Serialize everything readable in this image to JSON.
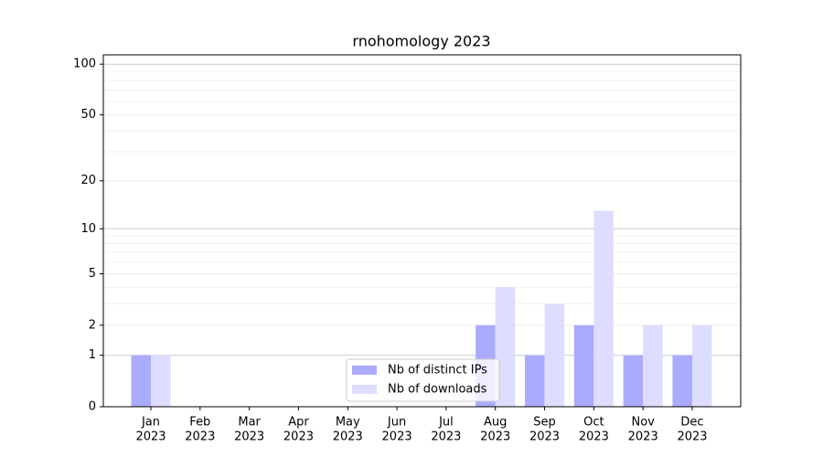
{
  "chart_data": {
    "type": "bar",
    "title": "rnohomology 2023",
    "categories": [
      [
        "Jan",
        "2023"
      ],
      [
        "Feb",
        "2023"
      ],
      [
        "Mar",
        "2023"
      ],
      [
        "Apr",
        "2023"
      ],
      [
        "May",
        "2023"
      ],
      [
        "Jun",
        "2023"
      ],
      [
        "Jul",
        "2023"
      ],
      [
        "Aug",
        "2023"
      ],
      [
        "Sep",
        "2023"
      ],
      [
        "Oct",
        "2023"
      ],
      [
        "Nov",
        "2023"
      ],
      [
        "Dec",
        "2023"
      ]
    ],
    "series": [
      {
        "name": "Nb of distinct IPs",
        "color": "#aaaaff",
        "values": [
          1,
          0,
          0,
          0,
          0,
          0,
          0,
          2,
          1,
          2,
          1,
          1
        ]
      },
      {
        "name": "Nb of downloads",
        "color": "#ddddff",
        "values": [
          1,
          0,
          0,
          0,
          0,
          0,
          0,
          4,
          3,
          13,
          2,
          2
        ]
      }
    ],
    "yscale": "log1p",
    "ylim": [
      0,
      113.5
    ],
    "yticks": [
      0,
      1,
      2,
      5,
      10,
      20,
      50,
      100
    ],
    "minor_yticks": [
      3,
      4,
      6,
      7,
      8,
      9,
      30,
      40,
      60,
      70,
      80,
      90
    ],
    "grid": true,
    "legend": "lower center"
  }
}
